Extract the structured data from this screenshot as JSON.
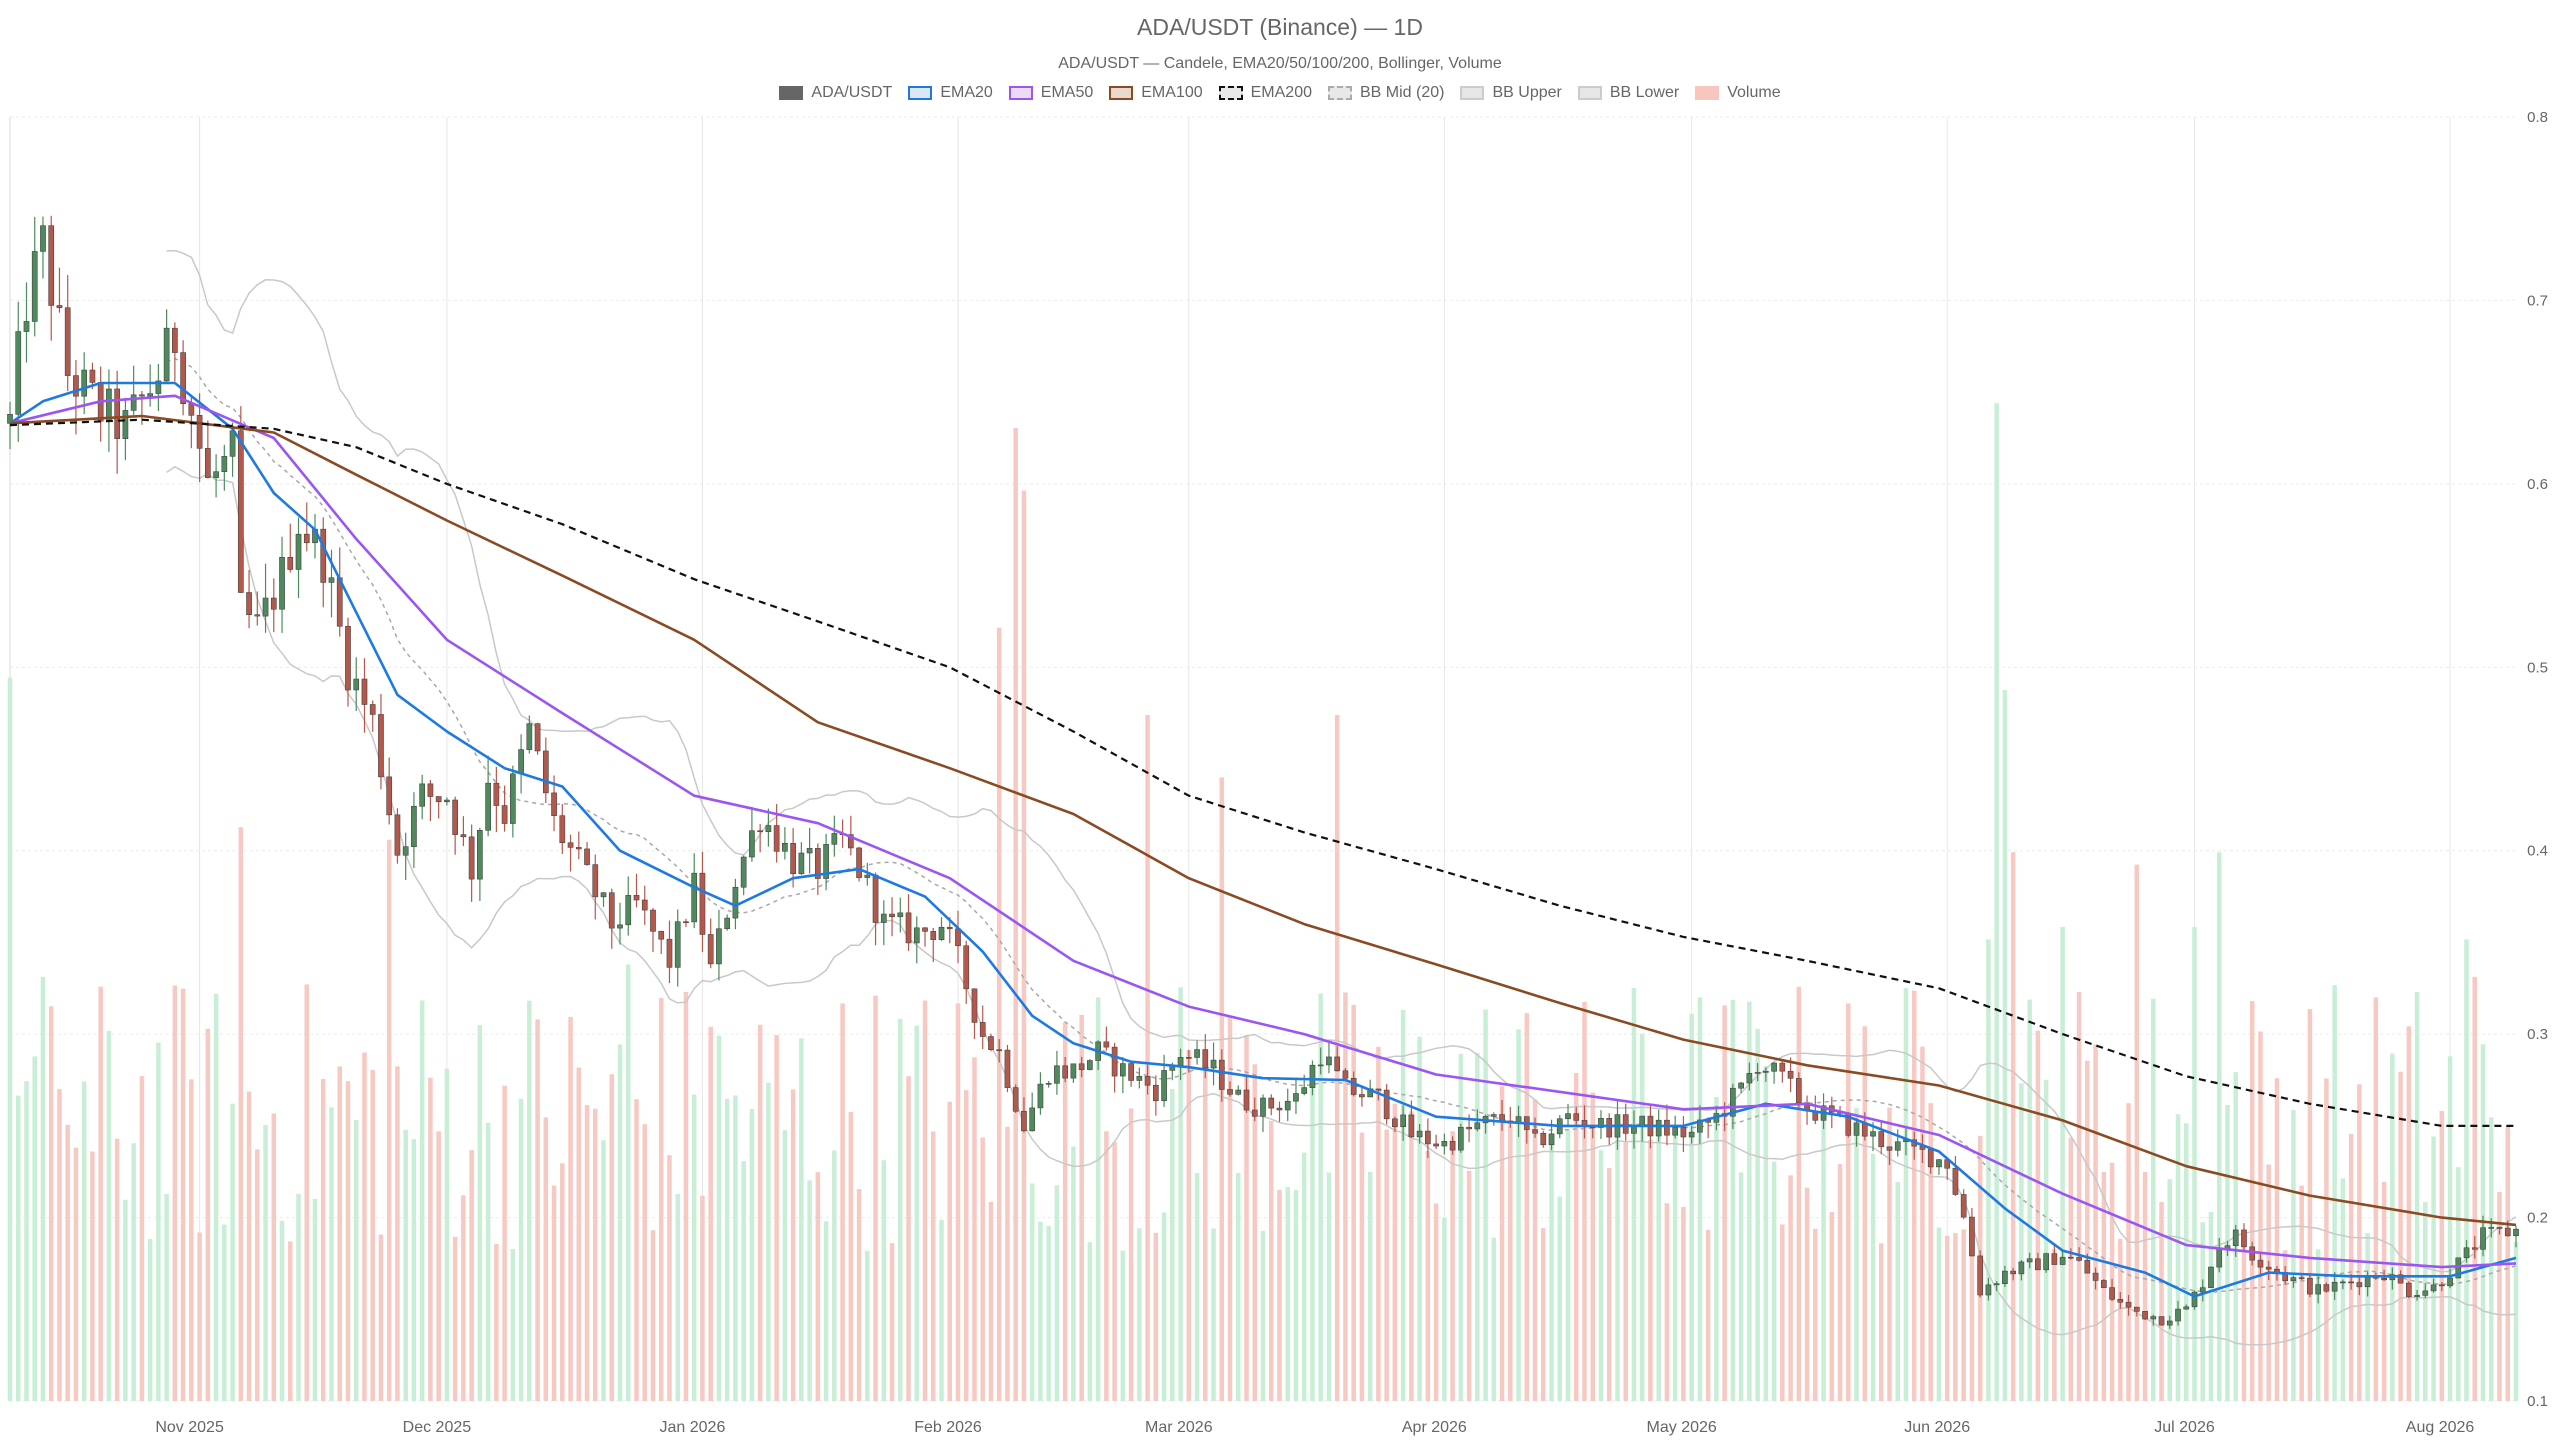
{
  "title": "ADA/USDT (Binance) — 1D",
  "subtitle": "ADA/USDT — Candele, EMA20/50/100/200, Bollinger, Volume",
  "legend": [
    {
      "label": "ADA/USDT",
      "fill": "#666666",
      "stroke": "#666666",
      "dash": false
    },
    {
      "label": "EMA20",
      "fill": "#dbe9f6",
      "stroke": "#1e7ae0",
      "dash": false
    },
    {
      "label": "EMA50",
      "fill": "#eadcf7",
      "stroke": "#9b55f2",
      "dash": false
    },
    {
      "label": "EMA100",
      "fill": "#ead8cc",
      "stroke": "#8a4a22",
      "dash": false
    },
    {
      "label": "EMA200",
      "fill": "#e8e8e8",
      "stroke": "#111111",
      "dash": true
    },
    {
      "label": "BB Mid (20)",
      "fill": "#e8e8e8",
      "stroke": "#aaaaaa",
      "dash": true
    },
    {
      "label": "BB Upper",
      "fill": "#e6e6e6",
      "stroke": "#cccccc",
      "dash": false
    },
    {
      "label": "BB Lower",
      "fill": "#e6e6e6",
      "stroke": "#cccccc",
      "dash": false
    },
    {
      "label": "Volume",
      "fill": "#f7c6bf",
      "stroke": "#f7c6bf",
      "dash": false
    }
  ],
  "colors": {
    "up": "#4e8a5c",
    "down": "#b5584c",
    "vol_up": "#c9eed6",
    "vol_down": "#f7c9c3",
    "grid": "#ececec",
    "axis_text": "#666666"
  },
  "chart_data": {
    "type": "candlestick",
    "title": "ADA/USDT (Binance) — 1D",
    "subtitle": "ADA/USDT — Candele, EMA20/50/100/200, Bollinger, Volume",
    "interval": "1D",
    "x_range": [
      "2025-10-09",
      "2026-08-09"
    ],
    "ylim": [
      0.1,
      0.8
    ],
    "y_ticks": [
      0.1,
      0.2,
      0.3,
      0.4,
      0.5,
      0.6,
      0.7,
      0.8
    ],
    "y_tick_labels": [
      "0.1",
      "0.2",
      "0.3",
      "0.4",
      "0.5",
      "0.6",
      "0.7",
      "0.8"
    ],
    "y_axis_side": "right",
    "x_tick_labels": [
      "Nov 2025",
      "Dec 2025",
      "Jan 2026",
      "Feb 2026",
      "Mar 2026",
      "Apr 2026",
      "May 2026",
      "Jun 2026",
      "Jul 2026",
      "Aug 2026"
    ],
    "x_ticks": [
      "2025-11-01",
      "2025-12-01",
      "2026-01-01",
      "2026-02-01",
      "2026-03-01",
      "2026-04-01",
      "2026-05-01",
      "2026-06-01",
      "2026-07-01",
      "2026-08-01"
    ],
    "grid": true,
    "legend_position": "top-center",
    "close_anchors": [
      [
        "2025-10-09",
        0.633
      ],
      [
        "2025-10-11",
        0.7
      ],
      [
        "2025-10-13",
        0.73
      ],
      [
        "2025-10-16",
        0.66
      ],
      [
        "2025-10-20",
        0.64
      ],
      [
        "2025-10-23",
        0.63
      ],
      [
        "2025-10-27",
        0.66
      ],
      [
        "2025-10-29",
        0.68
      ],
      [
        "2025-10-31",
        0.64
      ],
      [
        "2025-11-02",
        0.6
      ],
      [
        "2025-11-05",
        0.615
      ],
      [
        "2025-11-06",
        0.53
      ],
      [
        "2025-11-08",
        0.52
      ],
      [
        "2025-11-11",
        0.55
      ],
      [
        "2025-11-13",
        0.58
      ],
      [
        "2025-11-16",
        0.56
      ],
      [
        "2025-11-19",
        0.5
      ],
      [
        "2025-11-22",
        0.47
      ],
      [
        "2025-11-25",
        0.4
      ],
      [
        "2025-11-28",
        0.43
      ],
      [
        "2025-12-01",
        0.43
      ],
      [
        "2025-12-04",
        0.39
      ],
      [
        "2025-12-06",
        0.44
      ],
      [
        "2025-12-08",
        0.42
      ],
      [
        "2025-12-11",
        0.465
      ],
      [
        "2025-12-14",
        0.415
      ],
      [
        "2025-12-18",
        0.385
      ],
      [
        "2025-12-21",
        0.36
      ],
      [
        "2025-12-24",
        0.37
      ],
      [
        "2025-12-28",
        0.34
      ],
      [
        "2025-12-31",
        0.38
      ],
      [
        "2026-01-02",
        0.335
      ],
      [
        "2026-01-05",
        0.385
      ],
      [
        "2026-01-08",
        0.42
      ],
      [
        "2026-01-12",
        0.395
      ],
      [
        "2026-01-15",
        0.39
      ],
      [
        "2026-01-18",
        0.405
      ],
      [
        "2026-01-20",
        0.39
      ],
      [
        "2026-01-23",
        0.36
      ],
      [
        "2026-01-27",
        0.355
      ],
      [
        "2026-01-30",
        0.36
      ],
      [
        "2026-02-01",
        0.34
      ],
      [
        "2026-02-04",
        0.3
      ],
      [
        "2026-02-06",
        0.29
      ],
      [
        "2026-02-09",
        0.25
      ],
      [
        "2026-02-12",
        0.28
      ],
      [
        "2026-02-15",
        0.28
      ],
      [
        "2026-02-18",
        0.29
      ],
      [
        "2026-02-21",
        0.28
      ],
      [
        "2026-02-25",
        0.27
      ],
      [
        "2026-02-28",
        0.29
      ],
      [
        "2026-03-04",
        0.28
      ],
      [
        "2026-03-07",
        0.265
      ],
      [
        "2026-03-10",
        0.26
      ],
      [
        "2026-03-14",
        0.265
      ],
      [
        "2026-03-17",
        0.29
      ],
      [
        "2026-03-20",
        0.27
      ],
      [
        "2026-03-24",
        0.265
      ],
      [
        "2026-03-28",
        0.245
      ],
      [
        "2026-04-01",
        0.24
      ],
      [
        "2026-04-05",
        0.25
      ],
      [
        "2026-04-09",
        0.255
      ],
      [
        "2026-04-12",
        0.24
      ],
      [
        "2026-04-16",
        0.255
      ],
      [
        "2026-04-20",
        0.25
      ],
      [
        "2026-04-25",
        0.25
      ],
      [
        "2026-05-01",
        0.245
      ],
      [
        "2026-05-04",
        0.255
      ],
      [
        "2026-05-07",
        0.27
      ],
      [
        "2026-05-09",
        0.285
      ],
      [
        "2026-05-12",
        0.275
      ],
      [
        "2026-05-15",
        0.26
      ],
      [
        "2026-05-20",
        0.25
      ],
      [
        "2026-05-25",
        0.24
      ],
      [
        "2026-05-29",
        0.235
      ],
      [
        "2026-06-01",
        0.23
      ],
      [
        "2026-06-03",
        0.2
      ],
      [
        "2026-06-05",
        0.16
      ],
      [
        "2026-06-08",
        0.17
      ],
      [
        "2026-06-12",
        0.175
      ],
      [
        "2026-06-15",
        0.18
      ],
      [
        "2026-06-17",
        0.175
      ],
      [
        "2026-06-20",
        0.16
      ],
      [
        "2026-06-23",
        0.15
      ],
      [
        "2026-06-27",
        0.145
      ],
      [
        "2026-06-30",
        0.15
      ],
      [
        "2026-07-02",
        0.165
      ],
      [
        "2026-07-04",
        0.185
      ],
      [
        "2026-07-06",
        0.19
      ],
      [
        "2026-07-08",
        0.18
      ],
      [
        "2026-07-12",
        0.168
      ],
      [
        "2026-07-16",
        0.16
      ],
      [
        "2026-07-20",
        0.165
      ],
      [
        "2026-07-24",
        0.17
      ],
      [
        "2026-07-27",
        0.16
      ],
      [
        "2026-07-30",
        0.162
      ],
      [
        "2026-08-02",
        0.175
      ],
      [
        "2026-08-05",
        0.19
      ],
      [
        "2026-08-09",
        0.193
      ]
    ],
    "ema_series": [
      {
        "name": "EMA20",
        "color": "#1e7ae0",
        "points": [
          [
            "2025-10-09",
            0.633
          ],
          [
            "2025-10-13",
            0.645
          ],
          [
            "2025-10-20",
            0.655
          ],
          [
            "2025-10-29",
            0.655
          ],
          [
            "2025-11-05",
            0.63
          ],
          [
            "2025-11-10",
            0.595
          ],
          [
            "2025-11-15",
            0.575
          ],
          [
            "2025-11-20",
            0.53
          ],
          [
            "2025-11-25",
            0.485
          ],
          [
            "2025-12-01",
            0.465
          ],
          [
            "2025-12-08",
            0.445
          ],
          [
            "2025-12-15",
            0.435
          ],
          [
            "2025-12-22",
            0.4
          ],
          [
            "2025-12-31",
            0.38
          ],
          [
            "2026-01-05",
            0.37
          ],
          [
            "2026-01-12",
            0.385
          ],
          [
            "2026-01-20",
            0.39
          ],
          [
            "2026-01-28",
            0.375
          ],
          [
            "2026-02-04",
            0.345
          ],
          [
            "2026-02-10",
            0.31
          ],
          [
            "2026-02-15",
            0.295
          ],
          [
            "2026-02-22",
            0.285
          ],
          [
            "2026-03-01",
            0.282
          ],
          [
            "2026-03-10",
            0.276
          ],
          [
            "2026-03-20",
            0.275
          ],
          [
            "2026-03-31",
            0.255
          ],
          [
            "2026-04-15",
            0.25
          ],
          [
            "2026-04-30",
            0.25
          ],
          [
            "2026-05-10",
            0.262
          ],
          [
            "2026-05-20",
            0.255
          ],
          [
            "2026-05-31",
            0.236
          ],
          [
            "2026-06-08",
            0.205
          ],
          [
            "2026-06-15",
            0.182
          ],
          [
            "2026-06-25",
            0.17
          ],
          [
            "2026-07-01",
            0.157
          ],
          [
            "2026-07-10",
            0.17
          ],
          [
            "2026-07-20",
            0.168
          ],
          [
            "2026-08-01",
            0.168
          ],
          [
            "2026-08-09",
            0.178
          ]
        ]
      },
      {
        "name": "EMA50",
        "color": "#9b55f2",
        "points": [
          [
            "2025-10-09",
            0.633
          ],
          [
            "2025-10-20",
            0.645
          ],
          [
            "2025-10-29",
            0.648
          ],
          [
            "2025-11-10",
            0.625
          ],
          [
            "2025-11-20",
            0.57
          ],
          [
            "2025-12-01",
            0.515
          ],
          [
            "2025-12-15",
            0.475
          ],
          [
            "2025-12-31",
            0.43
          ],
          [
            "2026-01-15",
            0.415
          ],
          [
            "2026-01-31",
            0.385
          ],
          [
            "2026-02-15",
            0.34
          ],
          [
            "2026-03-01",
            0.315
          ],
          [
            "2026-03-15",
            0.3
          ],
          [
            "2026-03-31",
            0.278
          ],
          [
            "2026-04-30",
            0.259
          ],
          [
            "2026-05-15",
            0.262
          ],
          [
            "2026-05-31",
            0.245
          ],
          [
            "2026-06-15",
            0.213
          ],
          [
            "2026-06-30",
            0.185
          ],
          [
            "2026-07-15",
            0.178
          ],
          [
            "2026-07-31",
            0.173
          ],
          [
            "2026-08-09",
            0.175
          ]
        ]
      },
      {
        "name": "EMA100",
        "color": "#8a4a22",
        "points": [
          [
            "2025-10-09",
            0.633
          ],
          [
            "2025-10-25",
            0.637
          ],
          [
            "2025-11-10",
            0.628
          ],
          [
            "2025-11-20",
            0.605
          ],
          [
            "2025-12-01",
            0.58
          ],
          [
            "2025-12-15",
            0.55
          ],
          [
            "2025-12-31",
            0.515
          ],
          [
            "2026-01-15",
            0.47
          ],
          [
            "2026-01-31",
            0.445
          ],
          [
            "2026-02-15",
            0.42
          ],
          [
            "2026-03-01",
            0.385
          ],
          [
            "2026-03-15",
            0.36
          ],
          [
            "2026-03-31",
            0.338
          ],
          [
            "2026-04-15",
            0.317
          ],
          [
            "2026-04-30",
            0.297
          ],
          [
            "2026-05-15",
            0.283
          ],
          [
            "2026-05-31",
            0.272
          ],
          [
            "2026-06-15",
            0.253
          ],
          [
            "2026-06-30",
            0.228
          ],
          [
            "2026-07-15",
            0.212
          ],
          [
            "2026-07-31",
            0.2
          ],
          [
            "2026-08-09",
            0.196
          ]
        ]
      },
      {
        "name": "EMA200",
        "color": "#111111",
        "points": [
          [
            "2025-10-09",
            0.632
          ],
          [
            "2025-10-25",
            0.635
          ],
          [
            "2025-11-10",
            0.63
          ],
          [
            "2025-11-20",
            0.62
          ],
          [
            "2025-12-01",
            0.6
          ],
          [
            "2025-12-15",
            0.578
          ],
          [
            "2025-12-31",
            0.548
          ],
          [
            "2026-01-15",
            0.525
          ],
          [
            "2026-01-31",
            0.5
          ],
          [
            "2026-02-15",
            0.465
          ],
          [
            "2026-03-01",
            0.43
          ],
          [
            "2026-03-15",
            0.41
          ],
          [
            "2026-03-31",
            0.39
          ],
          [
            "2026-04-15",
            0.37
          ],
          [
            "2026-04-30",
            0.353
          ],
          [
            "2026-05-15",
            0.34
          ],
          [
            "2026-05-31",
            0.325
          ],
          [
            "2026-06-15",
            0.3
          ],
          [
            "2026-06-30",
            0.277
          ],
          [
            "2026-07-15",
            0.262
          ],
          [
            "2026-07-31",
            0.25
          ],
          [
            "2026-08-09",
            0.25
          ]
        ]
      }
    ],
    "volume_scale_max": 1.0,
    "volume_peaks": [
      [
        "2025-10-09",
        0.58
      ],
      [
        "2025-10-13",
        0.34
      ],
      [
        "2025-10-15",
        0.25
      ],
      [
        "2025-10-19",
        0.2
      ],
      [
        "2025-11-06",
        0.46
      ],
      [
        "2025-11-24",
        0.45
      ],
      [
        "2025-12-23",
        0.35
      ],
      [
        "2026-01-02",
        0.3
      ],
      [
        "2026-02-06",
        0.62
      ],
      [
        "2026-02-08",
        0.78
      ],
      [
        "2026-02-09",
        0.73
      ],
      [
        "2026-02-24",
        0.55
      ],
      [
        "2026-03-05",
        0.5
      ],
      [
        "2026-03-19",
        0.55
      ],
      [
        "2026-04-18",
        0.32
      ],
      [
        "2026-06-06",
        0.37
      ],
      [
        "2026-06-07",
        0.8
      ],
      [
        "2026-06-08",
        0.57
      ],
      [
        "2026-06-09",
        0.44
      ],
      [
        "2026-06-15",
        0.38
      ],
      [
        "2026-06-24",
        0.43
      ],
      [
        "2026-07-01",
        0.38
      ],
      [
        "2026-07-04",
        0.44
      ],
      [
        "2026-08-03",
        0.37
      ],
      [
        "2026-08-04",
        0.34
      ]
    ]
  }
}
